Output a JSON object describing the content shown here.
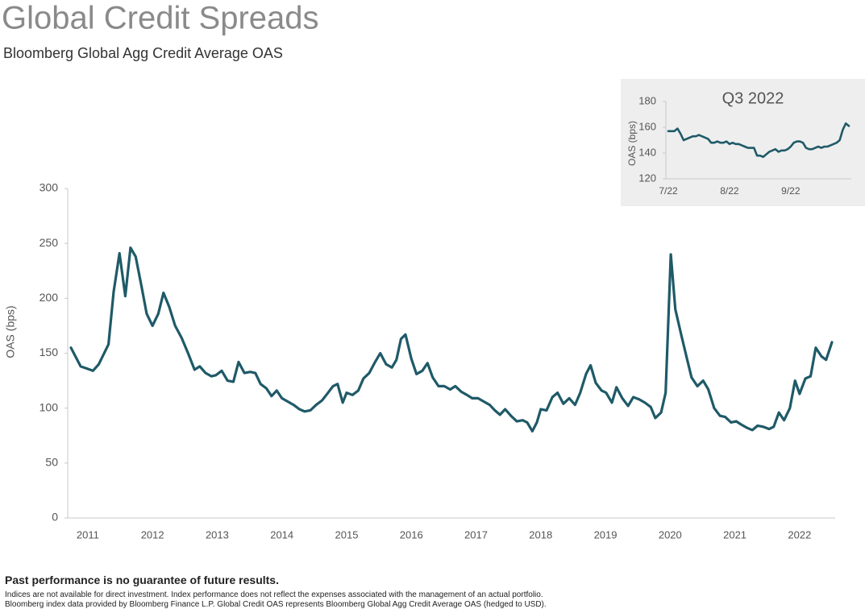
{
  "chart_data": [
    {
      "type": "line",
      "title": "Global Credit Spreads",
      "subtitle": "Bloomberg Global Agg Credit Average OAS",
      "y_label": "OAS (bps)",
      "x": [
        2010.74,
        2010.89,
        2010.99,
        2011.08,
        2011.17,
        2011.32,
        2011.4,
        2011.49,
        2011.58,
        2011.66,
        2011.74,
        2011.83,
        2011.91,
        2012.0,
        2012.09,
        2012.17,
        2012.26,
        2012.35,
        2012.45,
        2012.55,
        2012.65,
        2012.73,
        2012.82,
        2012.91,
        2012.98,
        2013.07,
        2013.16,
        2013.25,
        2013.33,
        2013.42,
        2013.51,
        2013.59,
        2013.67,
        2013.76,
        2013.84,
        2013.92,
        2014.0,
        2014.09,
        2014.18,
        2014.27,
        2014.35,
        2014.44,
        2014.53,
        2014.62,
        2014.7,
        2014.79,
        2014.86,
        2014.94,
        2015.0,
        2015.09,
        2015.18,
        2015.26,
        2015.35,
        2015.44,
        2015.52,
        2015.61,
        2015.7,
        2015.77,
        2015.84,
        2015.91,
        2016.0,
        2016.08,
        2016.17,
        2016.25,
        2016.33,
        2016.42,
        2016.51,
        2016.6,
        2016.68,
        2016.77,
        2016.86,
        2016.94,
        2017.03,
        2017.12,
        2017.21,
        2017.29,
        2017.37,
        2017.45,
        2017.54,
        2017.63,
        2017.72,
        2017.79,
        2017.87,
        2017.94,
        2018.0,
        2018.09,
        2018.18,
        2018.26,
        2018.35,
        2018.44,
        2018.53,
        2018.61,
        2018.7,
        2018.77,
        2018.85,
        2018.94,
        2019.01,
        2019.1,
        2019.17,
        2019.26,
        2019.35,
        2019.43,
        2019.52,
        2019.61,
        2019.7,
        2019.77,
        2019.86,
        2019.93,
        2020.01,
        2020.08,
        2020.17,
        2020.26,
        2020.33,
        2020.42,
        2020.51,
        2020.59,
        2020.68,
        2020.77,
        2020.85,
        2020.94,
        2021.02,
        2021.1,
        2021.19,
        2021.27,
        2021.35,
        2021.44,
        2021.53,
        2021.6,
        2021.68,
        2021.76,
        2021.85,
        2021.93,
        2022.0,
        2022.09,
        2022.17,
        2022.25,
        2022.34,
        2022.41,
        2022.5
      ],
      "series": [
        {
          "name": "OAS",
          "color": "#1f5a68",
          "values": [
            155,
            138,
            136,
            134,
            140,
            158,
            206,
            241,
            202,
            246,
            238,
            211,
            186,
            175,
            186,
            205,
            192,
            175,
            164,
            150,
            135,
            138,
            132,
            129,
            130,
            134,
            125,
            124,
            142,
            132,
            133,
            132,
            122,
            118,
            111,
            116,
            109,
            106,
            103,
            99,
            97,
            98,
            103,
            107,
            113,
            120,
            122,
            105,
            114,
            112,
            116,
            127,
            132,
            142,
            150,
            140,
            137,
            144,
            163,
            167,
            145,
            131,
            134,
            141,
            128,
            120,
            120,
            117,
            120,
            115,
            112,
            109,
            109,
            106,
            103,
            98,
            94,
            99,
            93,
            88,
            89,
            87,
            79,
            87,
            99,
            98,
            110,
            114,
            104,
            109,
            103,
            114,
            131,
            139,
            123,
            116,
            114,
            105,
            119,
            109,
            102,
            110,
            108,
            105,
            101,
            91,
            96,
            114,
            240,
            190,
            167,
            145,
            128,
            120,
            125,
            117,
            100,
            93,
            92,
            87,
            88,
            85,
            82,
            80,
            84,
            83,
            81,
            83,
            96,
            89,
            100,
            125,
            113,
            127,
            129,
            155,
            147,
            144,
            160
          ]
        }
      ],
      "xlim": [
        2010.69,
        2022.55
      ],
      "xticks": [
        2011,
        2012,
        2013,
        2014,
        2015,
        2016,
        2017,
        2018,
        2019,
        2020,
        2021,
        2022
      ],
      "ylim": [
        0,
        300
      ],
      "yticks": [
        0,
        50,
        100,
        150,
        200,
        250,
        300
      ]
    },
    {
      "type": "line",
      "title": "Q3 2022",
      "y_label": "OAS (bps)",
      "categories": [
        "7/22",
        null,
        null,
        null,
        null,
        null,
        null,
        null,
        null,
        null,
        null,
        null,
        null,
        null,
        null,
        null,
        null,
        null,
        null,
        null,
        "8/22",
        null,
        null,
        null,
        null,
        null,
        null,
        null,
        null,
        null,
        null,
        null,
        null,
        null,
        null,
        null,
        null,
        null,
        null,
        null,
        "9/22",
        null,
        null,
        null,
        null,
        null,
        null,
        null,
        null,
        null,
        null,
        null,
        null,
        null,
        null,
        null,
        null,
        null,
        null,
        null
      ],
      "series": [
        {
          "name": "OAS",
          "color": "#1f5a68",
          "values": [
            157,
            157,
            157,
            159,
            155,
            150,
            151,
            152,
            153,
            153,
            154,
            153,
            152,
            151,
            148,
            148,
            149,
            148,
            148,
            149,
            147,
            148,
            147,
            147,
            146,
            145,
            144,
            144,
            144,
            138,
            138,
            137,
            139,
            141,
            142,
            143,
            141,
            142,
            142,
            143,
            145,
            148,
            149,
            149,
            148,
            144,
            143,
            143,
            144,
            145,
            144,
            145,
            145,
            146,
            147,
            148,
            150,
            158,
            163,
            161
          ]
        }
      ],
      "ylim": [
        120,
        180
      ],
      "yticks": [
        120,
        140,
        160,
        180
      ]
    }
  ],
  "footer": {
    "disclaimer": "Past performance is no guarantee of future results.",
    "note1": "Indices are not available for direct investment. Index performance does not reflect the expenses associated with the management of an actual portfolio.",
    "note2": "Bloomberg index data provided by Bloomberg Finance L.P. Global Credit OAS represents Bloomberg Global Agg Credit Average OAS (hedged to USD)."
  }
}
